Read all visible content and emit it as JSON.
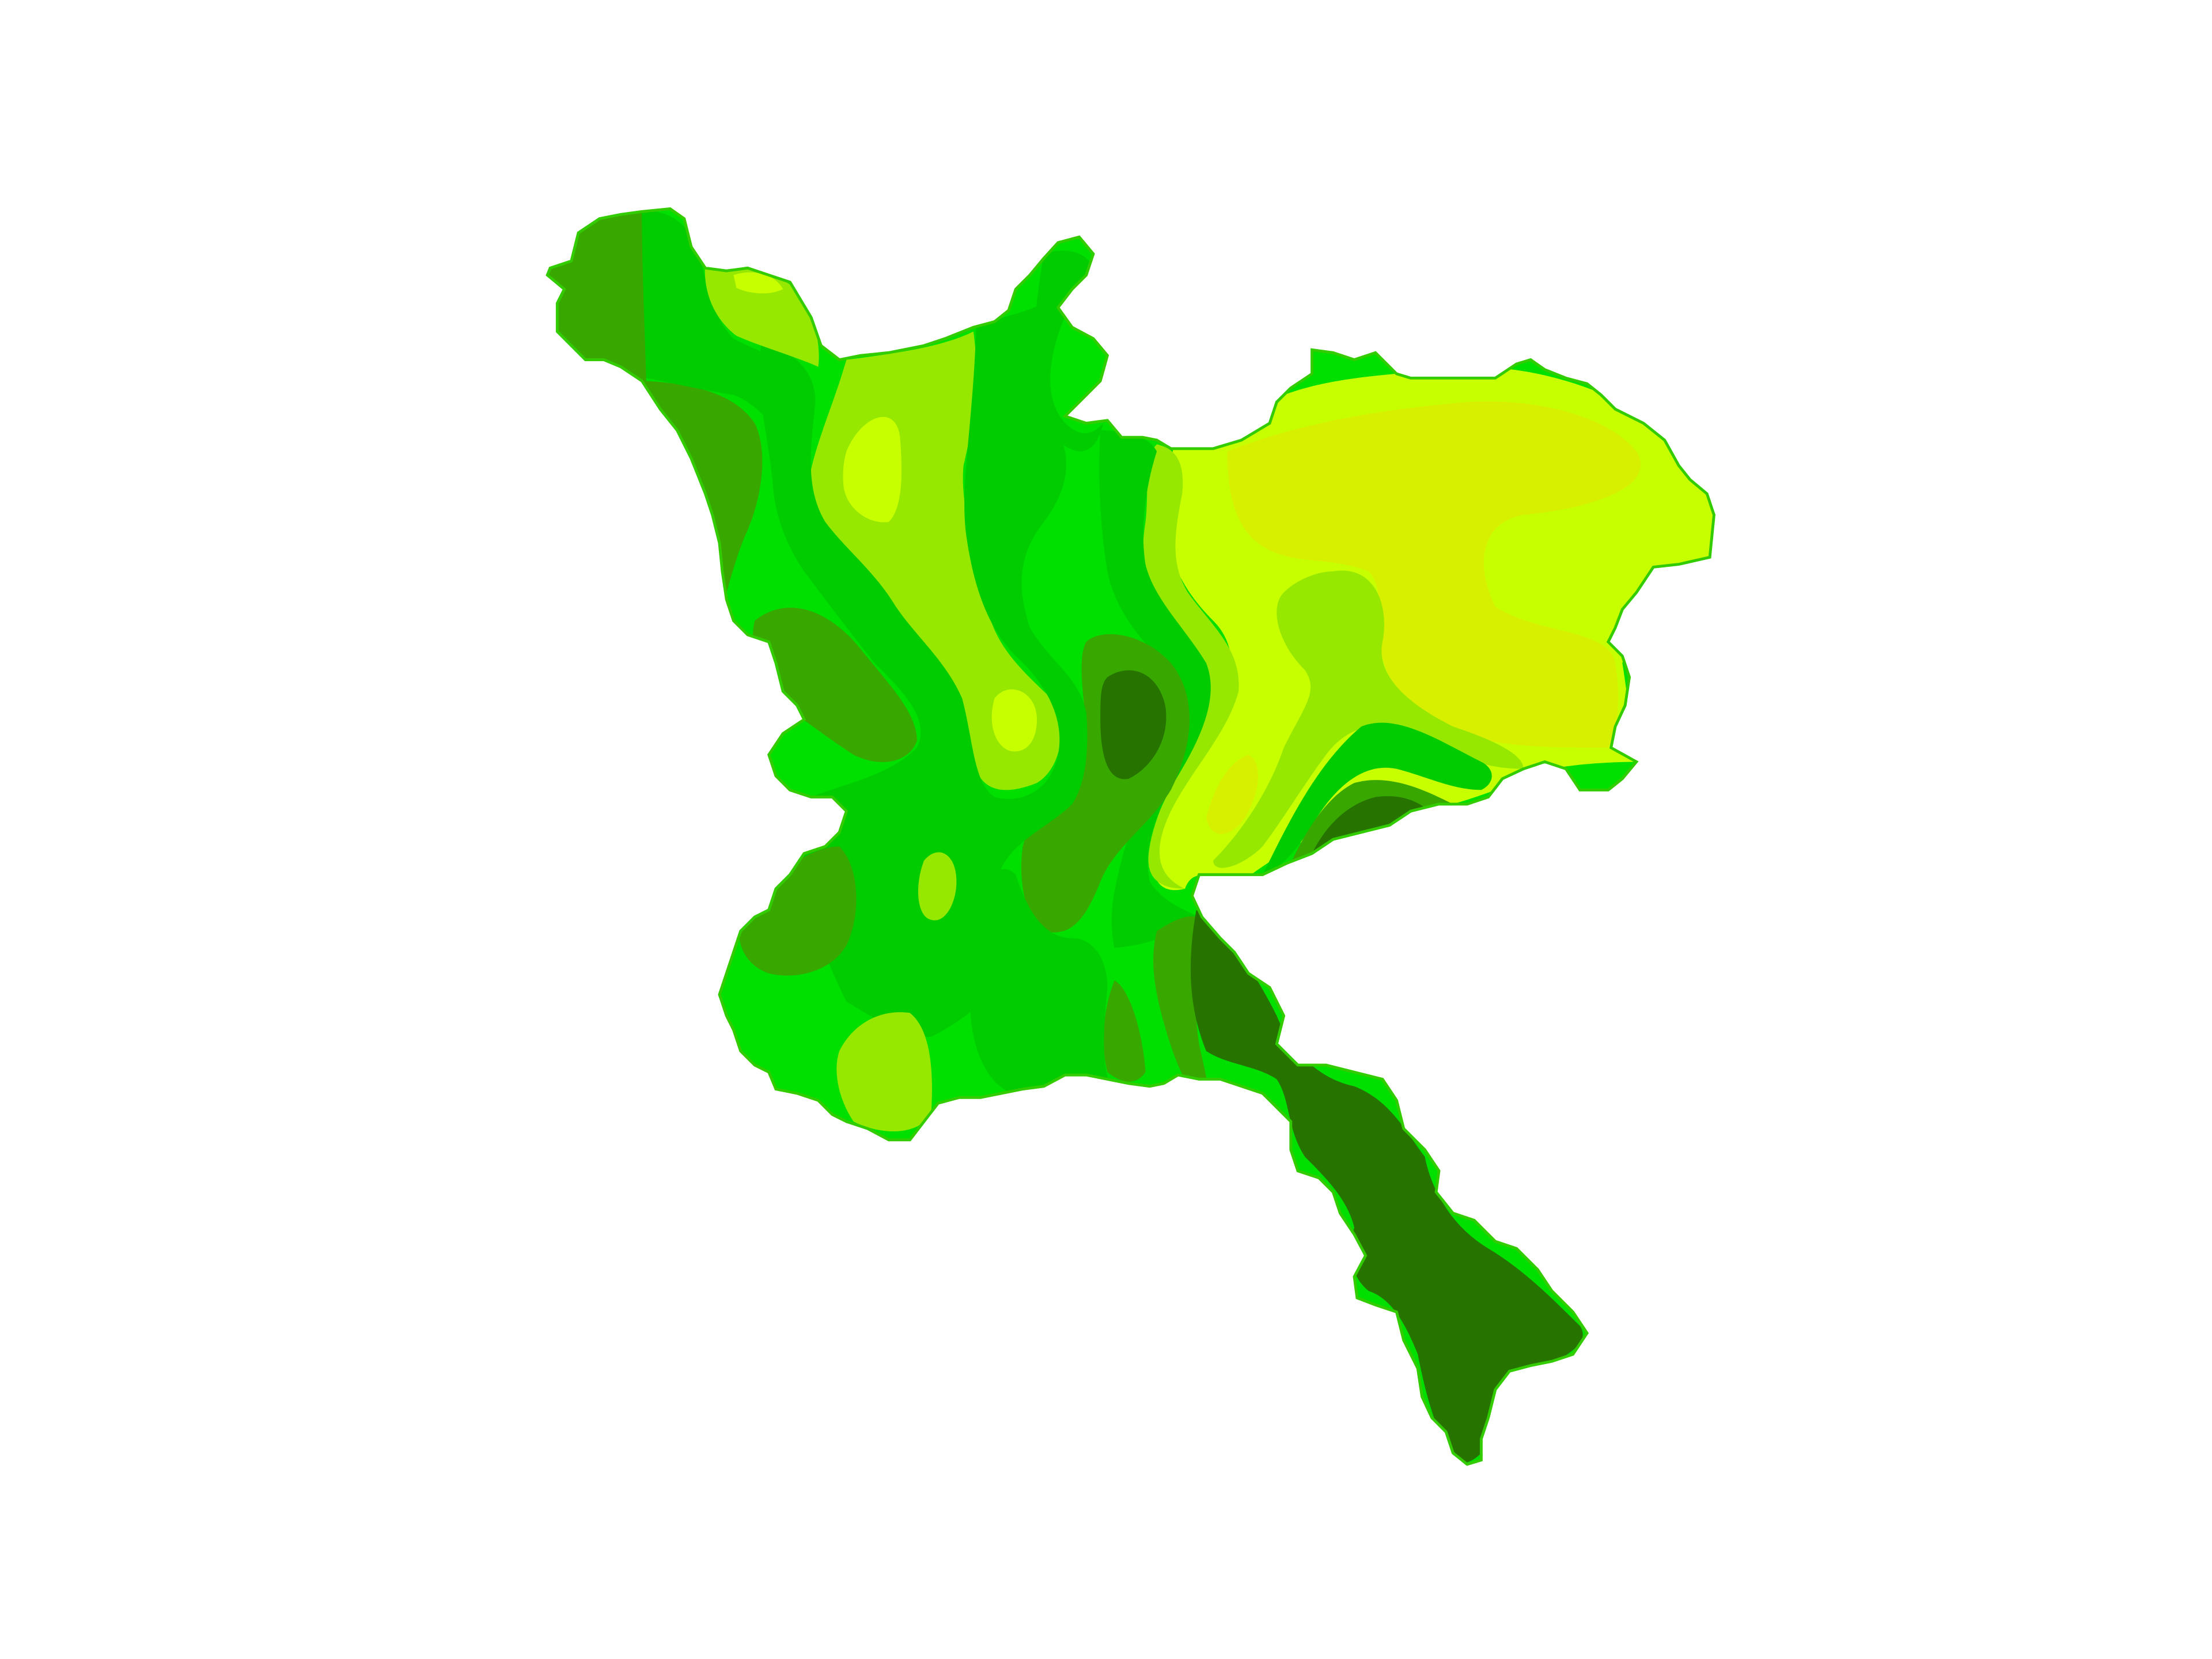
{
  "map": {
    "type": "choropleth-contour",
    "background": "#ffffff",
    "outline_color": "#33cc00",
    "palette": {
      "darkest_green": "#267300",
      "dark_green": "#38a800",
      "green": "#00cc00",
      "bright_green": "#00e000",
      "light_green": "#96e800",
      "yellow_green": "#c8ff00",
      "yellow": "#d7f000"
    },
    "level_order": [
      "darkest_green",
      "dark_green",
      "green",
      "bright_green",
      "light_green",
      "yellow_green",
      "yellow"
    ]
  }
}
